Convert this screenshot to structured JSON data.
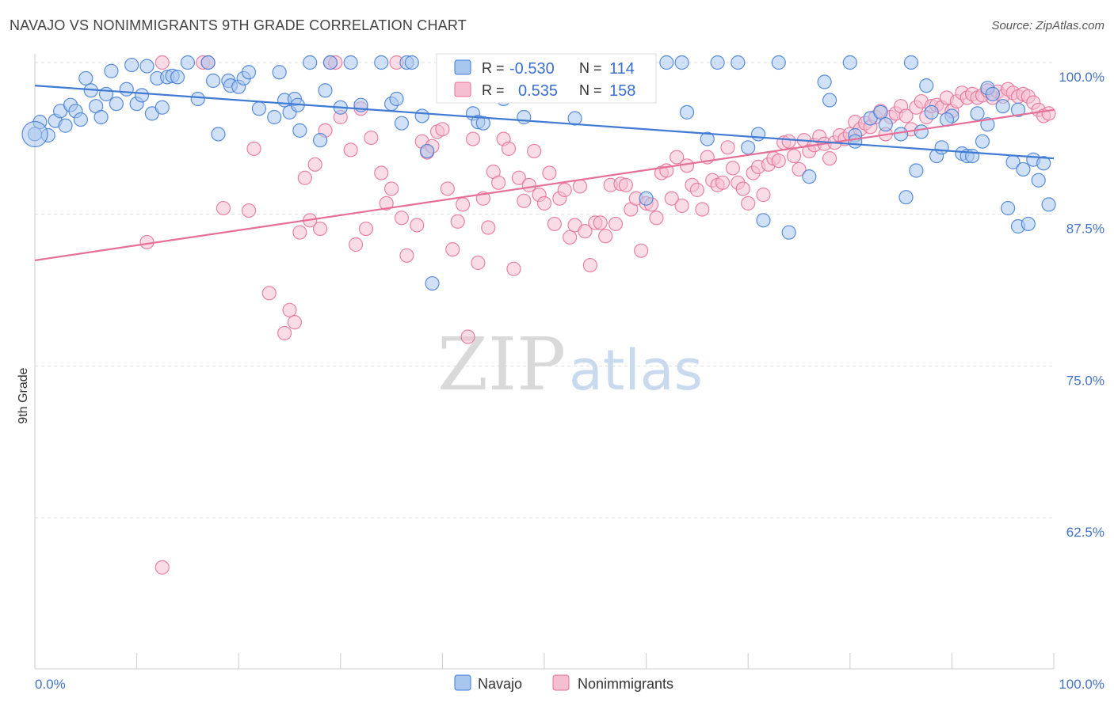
{
  "title": "NAVAJO VS NONIMMIGRANTS 9TH GRADE CORRELATION CHART",
  "source": "Source: ZipAtlas.com",
  "watermark": {
    "zip": "ZIP",
    "atlas": "atlas"
  },
  "colors": {
    "navajo": "#3f7bd4",
    "navajo_fill": "#a9c6ef",
    "nonimm": "#e56f97",
    "nonimm_fill": "#f6bfd1",
    "grid": "#dddddd",
    "axis_label": "#4472c4"
  },
  "legend": {
    "rows": [
      {
        "r_label": "R =",
        "r_value": "-0.530",
        "n_label": "N =",
        "n_value": "114"
      },
      {
        "r_label": "R =",
        "r_value": "0.535",
        "n_label": "N =",
        "n_value": "158"
      }
    ]
  },
  "bottom_legend": {
    "navajo": "Navajo",
    "nonimm": "Nonimmigrants"
  },
  "chart_data": {
    "type": "scatter",
    "ylabel": "9th Grade",
    "xlim": [
      0,
      100
    ],
    "ylim": [
      52,
      102
    ],
    "y_ticks": [
      {
        "value": 100,
        "label": "100.0%"
      },
      {
        "value": 87.5,
        "label": "87.5%"
      },
      {
        "value": 75,
        "label": "75.0%"
      },
      {
        "value": 62.5,
        "label": "62.5%"
      }
    ],
    "x_tick_labels": {
      "min": "0.0%",
      "max": "100.0%"
    },
    "x_minor_ticks": [
      0,
      10,
      20,
      30,
      40,
      50,
      60,
      70,
      80,
      90,
      100
    ],
    "grid": true,
    "series": [
      {
        "name": "Navajo",
        "trend": {
          "x": [
            0,
            100
          ],
          "y": [
            98.1,
            92.1
          ]
        },
        "points": [
          [
            0.5,
            95.1
          ],
          [
            1.3,
            94.0
          ],
          [
            2.0,
            95.2
          ],
          [
            2.5,
            96.0
          ],
          [
            3.0,
            94.8
          ],
          [
            3.5,
            96.5
          ],
          [
            4.0,
            96.0
          ],
          [
            4.5,
            95.3
          ],
          [
            5.0,
            98.7
          ],
          [
            5.5,
            97.7
          ],
          [
            6.0,
            96.4
          ],
          [
            6.5,
            95.5
          ],
          [
            7.0,
            97.4
          ],
          [
            7.5,
            99.3
          ],
          [
            8.0,
            96.6
          ],
          [
            9.0,
            97.8
          ],
          [
            9.5,
            99.8
          ],
          [
            10.0,
            96.6
          ],
          [
            10.5,
            97.3
          ],
          [
            11.0,
            99.7
          ],
          [
            11.5,
            95.8
          ],
          [
            12.0,
            98.7
          ],
          [
            12.5,
            96.3
          ],
          [
            13.0,
            98.8
          ],
          [
            13.5,
            98.9
          ],
          [
            14.0,
            98.8
          ],
          [
            15.0,
            100.0
          ],
          [
            16.0,
            97.0
          ],
          [
            17.0,
            100.0
          ],
          [
            17.5,
            98.5
          ],
          [
            18.0,
            94.1
          ],
          [
            19.0,
            98.5
          ],
          [
            19.2,
            98.1
          ],
          [
            20.0,
            98.0
          ],
          [
            20.5,
            98.7
          ],
          [
            21.0,
            99.2
          ],
          [
            22.0,
            96.2
          ],
          [
            23.5,
            95.5
          ],
          [
            24.0,
            99.2
          ],
          [
            24.5,
            96.9
          ],
          [
            25.0,
            95.9
          ],
          [
            25.5,
            97.0
          ],
          [
            25.8,
            96.5
          ],
          [
            26.0,
            94.4
          ],
          [
            27.0,
            100.0
          ],
          [
            28.0,
            93.6
          ],
          [
            28.5,
            97.7
          ],
          [
            29.0,
            100.0
          ],
          [
            30.0,
            96.3
          ],
          [
            31.0,
            100.0
          ],
          [
            32.0,
            96.5
          ],
          [
            34.0,
            100.0
          ],
          [
            35.0,
            96.6
          ],
          [
            35.5,
            97.0
          ],
          [
            36.0,
            95.0
          ],
          [
            36.5,
            100.0
          ],
          [
            37.0,
            100.0
          ],
          [
            38.0,
            95.6
          ],
          [
            38.5,
            92.7
          ],
          [
            39.0,
            81.8
          ],
          [
            43.0,
            95.8
          ],
          [
            43.5,
            95.1
          ],
          [
            44.0,
            95.0
          ],
          [
            45.0,
            100.0
          ],
          [
            46.0,
            97.0
          ],
          [
            48.0,
            95.5
          ],
          [
            50.0,
            100.0
          ],
          [
            53.0,
            95.4
          ],
          [
            57.0,
            100.0
          ],
          [
            58.0,
            100.0
          ],
          [
            60.0,
            88.8
          ],
          [
            62.0,
            100.0
          ],
          [
            64.0,
            95.9
          ],
          [
            66.0,
            93.7
          ],
          [
            67.0,
            100.0
          ],
          [
            69.0,
            100.0
          ],
          [
            70.0,
            93.0
          ],
          [
            71.0,
            94.1
          ],
          [
            71.5,
            87.0
          ],
          [
            74.0,
            86.0
          ],
          [
            76.0,
            90.6
          ],
          [
            80.0,
            100.0
          ],
          [
            80.5,
            94.0
          ],
          [
            82.0,
            95.4
          ],
          [
            83.0,
            95.9
          ],
          [
            83.5,
            94.9
          ],
          [
            85.0,
            94.1
          ],
          [
            86.0,
            100.0
          ],
          [
            86.5,
            91.1
          ],
          [
            87.0,
            94.3
          ],
          [
            87.5,
            98.1
          ],
          [
            88.0,
            95.9
          ],
          [
            88.5,
            92.3
          ],
          [
            89.0,
            93.0
          ],
          [
            90.0,
            95.6
          ],
          [
            91.0,
            92.5
          ],
          [
            91.5,
            92.3
          ],
          [
            92.0,
            92.3
          ],
          [
            92.5,
            95.8
          ],
          [
            93.0,
            93.5
          ],
          [
            93.5,
            97.9
          ],
          [
            94.0,
            97.4
          ],
          [
            95.0,
            96.4
          ],
          [
            95.5,
            88.0
          ],
          [
            96.0,
            91.8
          ],
          [
            96.5,
            86.5
          ],
          [
            97.0,
            91.2
          ],
          [
            97.5,
            86.7
          ],
          [
            98.0,
            92.0
          ],
          [
            98.5,
            90.3
          ],
          [
            99.0,
            91.7
          ],
          [
            99.5,
            88.3
          ]
        ],
        "extra_points": [
          [
            0.0,
            94.1
          ],
          [
            63.5,
            100.0
          ],
          [
            73.0,
            100.0
          ],
          [
            77.5,
            98.4
          ],
          [
            78.0,
            96.9
          ],
          [
            80.5,
            93.5
          ],
          [
            89.5,
            95.3
          ],
          [
            93.5,
            94.9
          ],
          [
            96.5,
            96.1
          ],
          [
            85.5,
            88.9
          ]
        ]
      },
      {
        "name": "Nonimmigrants",
        "trend": {
          "x": [
            0,
            100
          ],
          "y": [
            83.7,
            96.1
          ]
        },
        "points": [
          [
            11.0,
            85.2
          ],
          [
            12.5,
            58.4
          ],
          [
            16.5,
            100.0
          ],
          [
            17.0,
            100.0
          ],
          [
            21.0,
            87.8
          ],
          [
            21.5,
            92.9
          ],
          [
            23.0,
            81.0
          ],
          [
            24.5,
            77.7
          ],
          [
            25.0,
            79.6
          ],
          [
            25.5,
            78.6
          ],
          [
            26.0,
            86.0
          ],
          [
            26.5,
            90.5
          ],
          [
            27.0,
            87.0
          ],
          [
            27.5,
            91.6
          ],
          [
            28.0,
            86.3
          ],
          [
            28.5,
            94.4
          ],
          [
            29.0,
            100.0
          ],
          [
            29.5,
            100.0
          ],
          [
            30.0,
            95.5
          ],
          [
            31.0,
            92.8
          ],
          [
            31.5,
            85.0
          ],
          [
            32.0,
            96.2
          ],
          [
            32.5,
            86.3
          ],
          [
            33.0,
            93.8
          ],
          [
            34.0,
            90.9
          ],
          [
            34.5,
            88.4
          ],
          [
            35.0,
            89.6
          ],
          [
            35.5,
            100.0
          ],
          [
            36.0,
            87.2
          ],
          [
            36.5,
            84.1
          ],
          [
            37.5,
            86.6
          ],
          [
            38.0,
            93.5
          ],
          [
            38.5,
            92.6
          ],
          [
            39.0,
            93.1
          ],
          [
            39.5,
            94.3
          ],
          [
            40.0,
            94.5
          ],
          [
            40.5,
            89.6
          ],
          [
            41.0,
            84.6
          ],
          [
            41.5,
            86.9
          ],
          [
            42.0,
            88.3
          ],
          [
            42.5,
            77.4
          ],
          [
            43.0,
            93.7
          ],
          [
            43.5,
            83.5
          ],
          [
            44.0,
            88.8
          ],
          [
            44.5,
            86.4
          ],
          [
            45.0,
            91.0
          ],
          [
            45.5,
            90.1
          ],
          [
            46.0,
            93.7
          ],
          [
            46.5,
            92.9
          ],
          [
            47.0,
            83.0
          ],
          [
            47.5,
            90.5
          ],
          [
            48.0,
            88.6
          ],
          [
            48.5,
            89.9
          ],
          [
            49.0,
            92.7
          ],
          [
            49.5,
            89.1
          ],
          [
            50.0,
            88.4
          ],
          [
            50.5,
            90.9
          ],
          [
            51.0,
            86.7
          ],
          [
            51.5,
            88.8
          ],
          [
            52.0,
            89.5
          ],
          [
            52.5,
            85.6
          ],
          [
            53.0,
            86.6
          ],
          [
            53.5,
            89.8
          ],
          [
            54.0,
            86.1
          ],
          [
            54.5,
            83.3
          ],
          [
            55.0,
            86.8
          ],
          [
            55.5,
            86.8
          ],
          [
            56.0,
            85.7
          ],
          [
            56.5,
            89.9
          ],
          [
            57.0,
            86.7
          ],
          [
            57.5,
            90.0
          ],
          [
            58.0,
            89.9
          ],
          [
            58.5,
            87.9
          ],
          [
            59.0,
            88.8
          ],
          [
            59.5,
            84.5
          ],
          [
            60.0,
            88.4
          ],
          [
            60.5,
            88.3
          ],
          [
            61.0,
            87.2
          ],
          [
            61.5,
            90.9
          ],
          [
            62.0,
            91.1
          ],
          [
            62.5,
            88.8
          ],
          [
            63.0,
            92.2
          ],
          [
            63.5,
            88.2
          ],
          [
            64.0,
            91.5
          ],
          [
            64.5,
            89.9
          ],
          [
            65.0,
            89.5
          ],
          [
            65.5,
            87.9
          ],
          [
            66.0,
            92.2
          ],
          [
            66.5,
            90.3
          ],
          [
            67.0,
            89.9
          ],
          [
            67.5,
            90.1
          ],
          [
            68.0,
            93.0
          ],
          [
            68.5,
            91.3
          ],
          [
            69.0,
            90.1
          ],
          [
            69.5,
            89.6
          ],
          [
            70.0,
            88.4
          ],
          [
            70.5,
            90.9
          ],
          [
            71.0,
            91.4
          ],
          [
            71.5,
            89.1
          ],
          [
            72.0,
            91.6
          ],
          [
            72.5,
            92.1
          ],
          [
            73.0,
            91.9
          ],
          [
            73.5,
            93.4
          ],
          [
            74.0,
            93.5
          ],
          [
            74.5,
            92.3
          ],
          [
            75.0,
            91.2
          ],
          [
            75.5,
            93.6
          ],
          [
            76.0,
            92.7
          ],
          [
            76.5,
            93.2
          ],
          [
            77.0,
            93.9
          ],
          [
            77.5,
            93.3
          ],
          [
            78.0,
            92.1
          ],
          [
            78.5,
            93.4
          ],
          [
            79.0,
            94.0
          ],
          [
            79.5,
            93.7
          ],
          [
            80.0,
            94.1
          ],
          [
            80.5,
            95.1
          ],
          [
            81.0,
            94.5
          ],
          [
            81.5,
            95.0
          ],
          [
            82.0,
            94.7
          ],
          [
            82.5,
            95.5
          ],
          [
            83.0,
            96.0
          ],
          [
            83.5,
            94.1
          ],
          [
            84.0,
            95.5
          ],
          [
            84.5,
            95.8
          ],
          [
            85.0,
            96.4
          ],
          [
            85.5,
            95.6
          ],
          [
            86.0,
            94.5
          ],
          [
            86.5,
            96.3
          ],
          [
            87.0,
            96.8
          ],
          [
            87.5,
            95.5
          ],
          [
            88.0,
            96.4
          ],
          [
            88.5,
            96.5
          ],
          [
            89.0,
            96.3
          ],
          [
            89.5,
            97.1
          ],
          [
            90.0,
            96.0
          ],
          [
            90.5,
            96.8
          ],
          [
            91.0,
            97.5
          ],
          [
            91.5,
            97.1
          ],
          [
            92.0,
            97.4
          ],
          [
            92.5,
            97.1
          ],
          [
            93.0,
            97.3
          ],
          [
            93.5,
            97.7
          ],
          [
            94.0,
            97.1
          ],
          [
            94.5,
            97.6
          ],
          [
            95.0,
            97.2
          ],
          [
            95.5,
            97.8
          ],
          [
            96.0,
            97.5
          ],
          [
            96.5,
            97.2
          ],
          [
            97.0,
            97.4
          ],
          [
            97.5,
            97.2
          ],
          [
            98.0,
            96.7
          ],
          [
            98.5,
            96.1
          ],
          [
            99.0,
            95.6
          ],
          [
            99.5,
            95.8
          ],
          [
            12.5,
            100.0
          ],
          [
            18.5,
            88.0
          ]
        ]
      }
    ]
  }
}
